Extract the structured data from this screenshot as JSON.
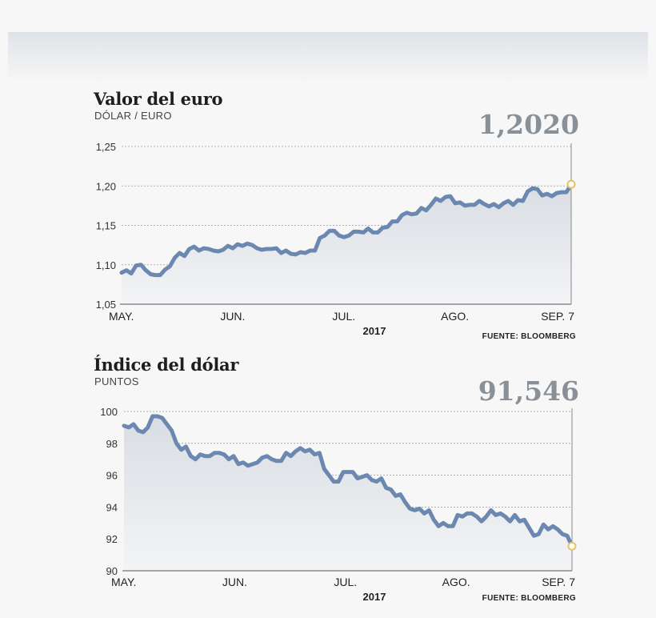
{
  "colors": {
    "line": "#6b88b0",
    "area_top": "#d9dde3",
    "area_bottom": "#f3f4f6",
    "marker": "#e8c26a",
    "big_value": "#8a9097"
  },
  "chart_data": [
    {
      "type": "area",
      "title": "Valor del euro",
      "subtitle": "DÓLAR / EURO",
      "last_value_label": "1,2020",
      "year_label": "2017",
      "source": "FUENTE: BLOOMBERG",
      "ylim": [
        1.05,
        1.25
      ],
      "yticks": [
        {
          "value": 1.05,
          "label": "1,05"
        },
        {
          "value": 1.1,
          "label": "1,10"
        },
        {
          "value": 1.15,
          "label": "1,15"
        },
        {
          "value": 1.2,
          "label": "1,20"
        },
        {
          "value": 1.25,
          "label": "1,25"
        }
      ],
      "xticks": [
        {
          "label": "MAY.",
          "x": 0
        },
        {
          "label": "JUN.",
          "x": 21.5
        },
        {
          "label": "JUL.",
          "x": 43
        },
        {
          "label": "AGO.",
          "x": 64.5
        },
        {
          "label": "SEP. 7",
          "x": 86
        }
      ],
      "xlim": [
        0,
        87
      ],
      "values": [
        1.09,
        1.093,
        1.089,
        1.099,
        1.1,
        1.093,
        1.088,
        1.087,
        1.087,
        1.094,
        1.098,
        1.109,
        1.115,
        1.111,
        1.12,
        1.123,
        1.118,
        1.121,
        1.12,
        1.118,
        1.117,
        1.119,
        1.124,
        1.121,
        1.126,
        1.124,
        1.127,
        1.125,
        1.121,
        1.119,
        1.12,
        1.12,
        1.121,
        1.115,
        1.118,
        1.114,
        1.113,
        1.116,
        1.115,
        1.118,
        1.118,
        1.134,
        1.137,
        1.143,
        1.143,
        1.137,
        1.135,
        1.137,
        1.142,
        1.142,
        1.141,
        1.146,
        1.141,
        1.141,
        1.147,
        1.148,
        1.155,
        1.155,
        1.163,
        1.166,
        1.164,
        1.165,
        1.172,
        1.169,
        1.176,
        1.184,
        1.181,
        1.186,
        1.187,
        1.178,
        1.179,
        1.175,
        1.176,
        1.176,
        1.181,
        1.177,
        1.174,
        1.177,
        1.173,
        1.178,
        1.181,
        1.176,
        1.182,
        1.181,
        1.193,
        1.197,
        1.196,
        1.188,
        1.19,
        1.187,
        1.191,
        1.192,
        1.192,
        1.202
      ]
    },
    {
      "type": "area",
      "title": "Índice del dólar",
      "subtitle": "PUNTOS",
      "last_value_label": "91,546",
      "year_label": "2017",
      "source": "FUENTE: BLOOMBERG",
      "ylim": [
        90,
        100
      ],
      "yticks": [
        {
          "value": 90,
          "label": "90"
        },
        {
          "value": 92,
          "label": "92"
        },
        {
          "value": 94,
          "label": "94"
        },
        {
          "value": 96,
          "label": "96"
        },
        {
          "value": 98,
          "label": "98"
        },
        {
          "value": 100,
          "label": "100"
        }
      ],
      "xticks": [
        {
          "label": "MAY.",
          "x": 0
        },
        {
          "label": "JUN.",
          "x": 21.5
        },
        {
          "label": "JUL.",
          "x": 43
        },
        {
          "label": "AGO.",
          "x": 64.5
        },
        {
          "label": "SEP. 7",
          "x": 86
        }
      ],
      "xlim": [
        0,
        87
      ],
      "values": [
        99.1,
        99.0,
        99.2,
        98.8,
        98.7,
        99.0,
        99.7,
        99.7,
        99.6,
        99.2,
        98.8,
        98.0,
        97.6,
        97.8,
        97.2,
        97.0,
        97.3,
        97.2,
        97.2,
        97.4,
        97.4,
        97.3,
        97.0,
        97.2,
        96.7,
        96.8,
        96.6,
        96.7,
        96.8,
        97.1,
        97.2,
        97.0,
        96.9,
        96.9,
        97.4,
        97.2,
        97.5,
        97.7,
        97.5,
        97.6,
        97.3,
        97.4,
        96.4,
        96.0,
        95.6,
        95.6,
        96.2,
        96.2,
        96.2,
        95.8,
        95.9,
        96.0,
        95.7,
        95.6,
        95.8,
        95.2,
        95.1,
        94.7,
        94.8,
        94.3,
        93.9,
        93.8,
        93.9,
        93.6,
        93.8,
        93.2,
        92.8,
        93.0,
        92.8,
        92.8,
        93.5,
        93.4,
        93.6,
        93.6,
        93.4,
        93.1,
        93.4,
        93.8,
        93.5,
        93.6,
        93.4,
        93.1,
        93.5,
        93.1,
        93.2,
        92.7,
        92.2,
        92.3,
        92.9,
        92.6,
        92.8,
        92.6,
        92.3,
        92.2,
        91.546
      ]
    }
  ]
}
